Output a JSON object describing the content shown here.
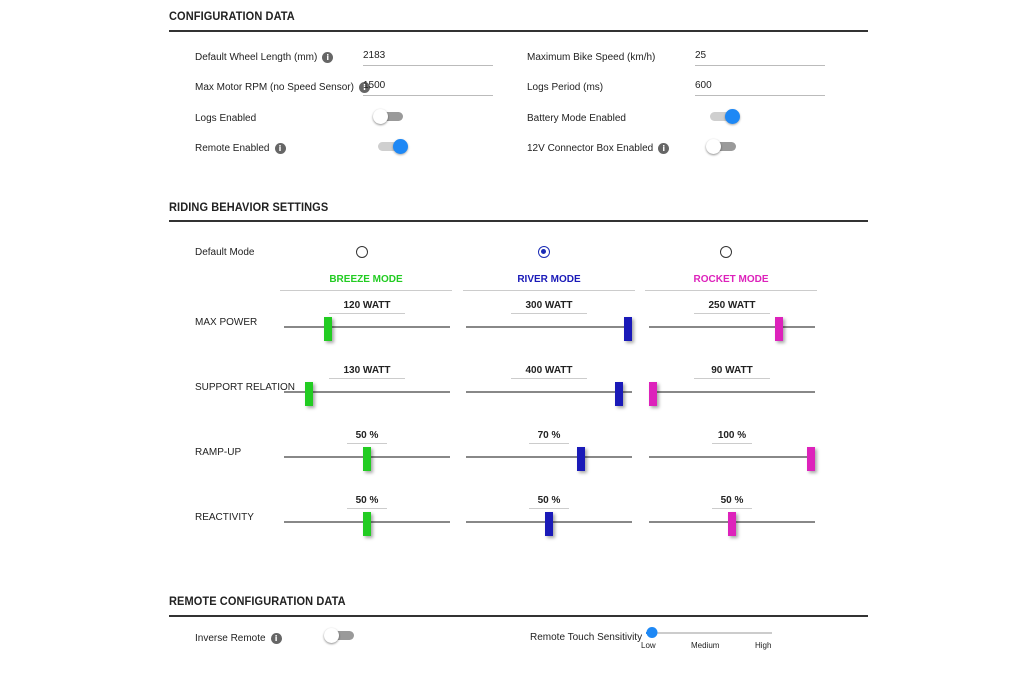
{
  "config": {
    "title": "CONFIGURATION DATA",
    "wheel_length": {
      "label": "Default Wheel Length (mm)",
      "value": "2183"
    },
    "max_speed": {
      "label": "Maximum Bike Speed (km/h)",
      "value": "25"
    },
    "max_rpm": {
      "label": "Max Motor RPM (no Speed Sensor)",
      "value": "1500"
    },
    "logs_period": {
      "label": "Logs Period (ms)",
      "value": "600"
    },
    "logs_enabled": {
      "label": "Logs Enabled",
      "on": false
    },
    "battery_mode": {
      "label": "Battery Mode Enabled",
      "on": true
    },
    "remote_enabled": {
      "label": "Remote Enabled",
      "on": true
    },
    "connector_box": {
      "label": "12V Connector Box Enabled",
      "on": false
    }
  },
  "riding": {
    "title": "RIDING BEHAVIOR SETTINGS",
    "default_mode_label": "Default Mode",
    "selected_mode": 1,
    "modes": [
      {
        "name": "BREEZE MODE",
        "color": "#22cc22"
      },
      {
        "name": "RIVER MODE",
        "color": "#1a1ab8"
      },
      {
        "name": "ROCKET MODE",
        "color": "#dd22bb"
      }
    ],
    "rows": [
      {
        "label": "MAX POWER",
        "values": [
          "120 WATT",
          "300 WATT",
          "250 WATT"
        ],
        "positions": [
          0.25,
          1.0,
          0.8
        ]
      },
      {
        "label": "SUPPORT RELATION",
        "values": [
          "130 WATT",
          "400 WATT",
          "90 WATT"
        ],
        "positions": [
          0.13,
          0.94,
          0.0
        ]
      },
      {
        "label": "RAMP-UP",
        "values": [
          "50 %",
          "70 %",
          "100 %"
        ],
        "positions": [
          0.5,
          0.7,
          1.0
        ]
      },
      {
        "label": "REACTIVITY",
        "values": [
          "50 %",
          "50 %",
          "50 %"
        ],
        "positions": [
          0.5,
          0.5,
          0.5
        ]
      }
    ]
  },
  "remote": {
    "title": "REMOTE CONFIGURATION DATA",
    "inverse": {
      "label": "Inverse Remote",
      "on": false
    },
    "sensitivity": {
      "label": "Remote Touch Sensitivity",
      "level": 0.0,
      "ticks": [
        "Low",
        "Medium",
        "High"
      ]
    }
  },
  "icons": {
    "info": "i"
  }
}
